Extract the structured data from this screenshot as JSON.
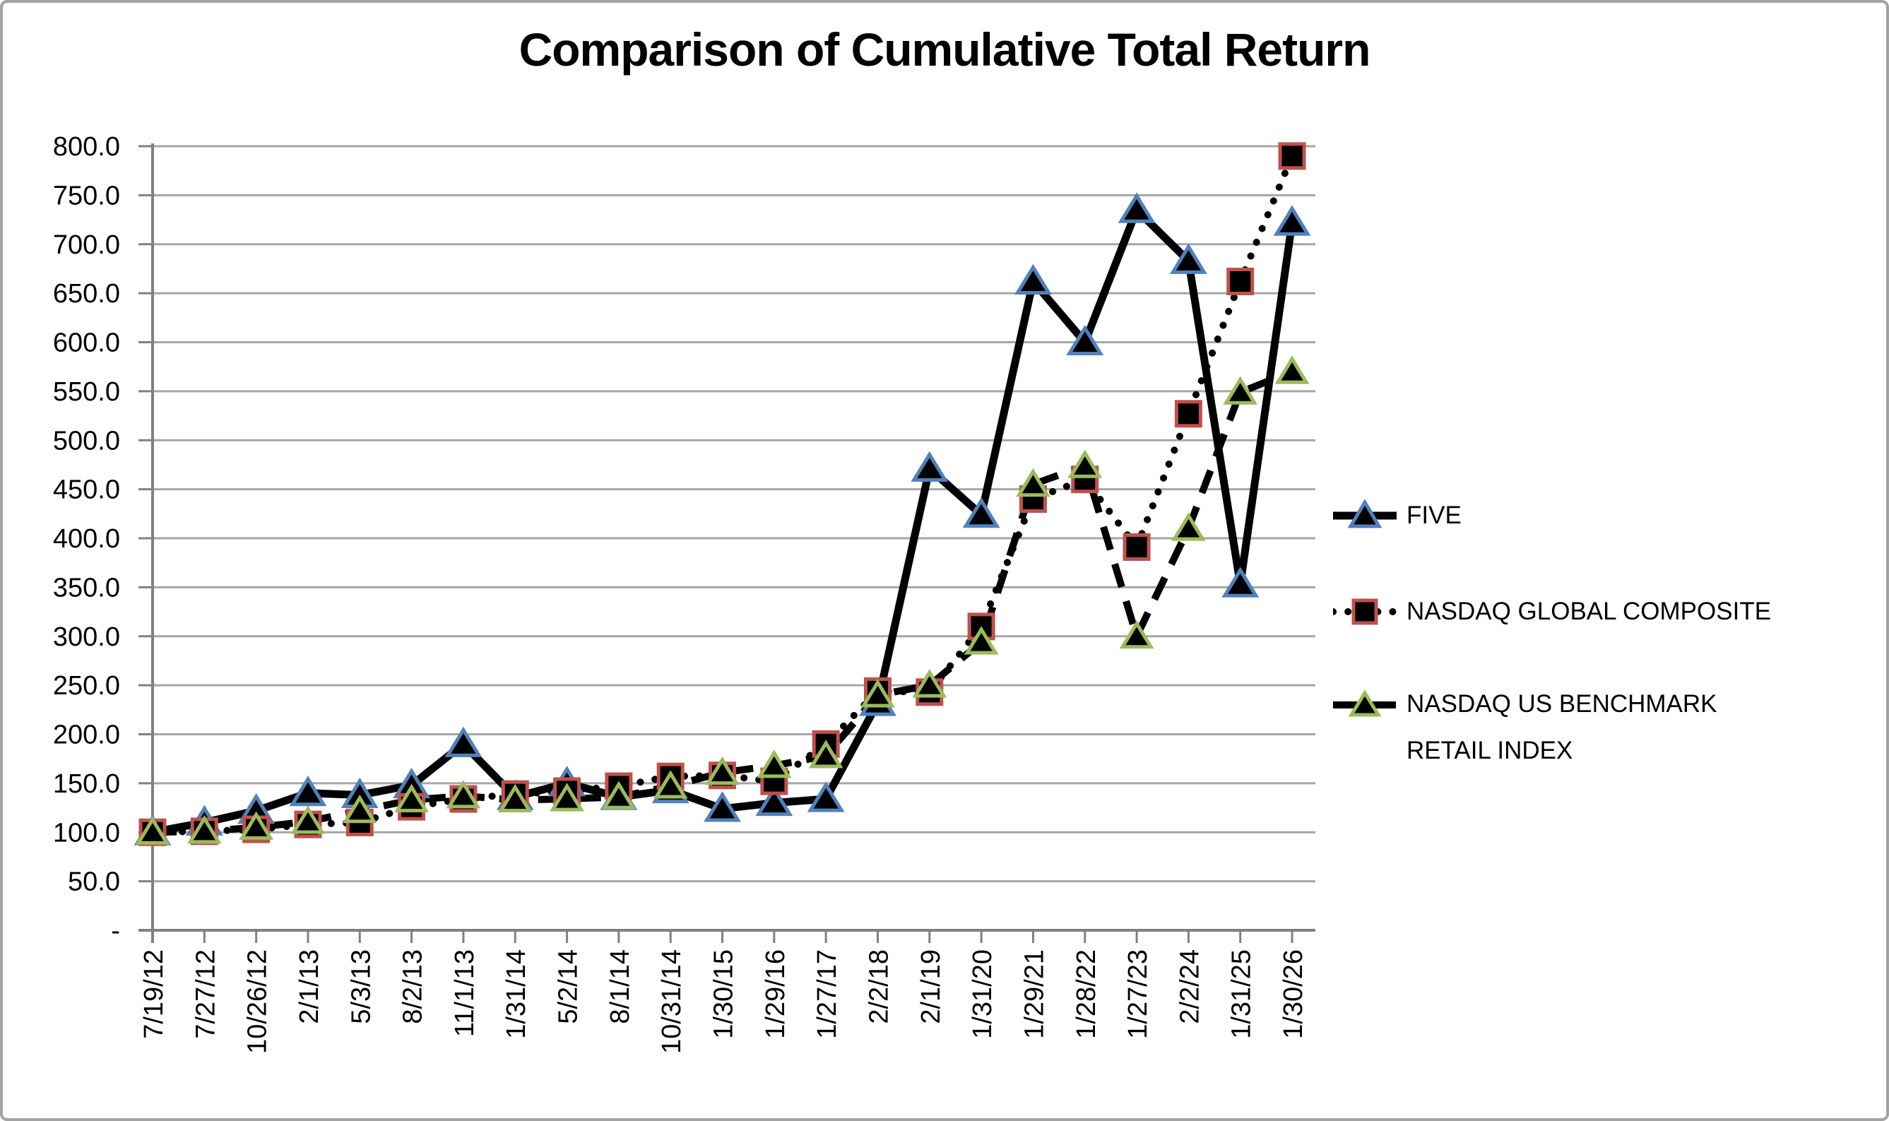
{
  "chart_data": {
    "type": "line",
    "title": "Comparison of Cumulative Total Return",
    "categories": [
      "7/19/12",
      "7/27/12",
      "10/26/12",
      "2/1/13",
      "5/3/13",
      "8/2/13",
      "11/1/13",
      "1/31/14",
      "5/2/14",
      "8/1/14",
      "10/31/14",
      "1/30/15",
      "1/29/16",
      "1/27/17",
      "2/2/18",
      "2/1/19",
      "1/31/20",
      "1/29/21",
      "1/28/22",
      "1/27/23",
      "2/2/24",
      "1/31/25",
      "1/30/26"
    ],
    "series": [
      {
        "name": "FIVE",
        "line_style": "solid",
        "marker": "triangle",
        "marker_fill": "#000000",
        "marker_border": "#4f81bd",
        "line_color": "#000000",
        "values": [
          100,
          110,
          122,
          140,
          138,
          148,
          190,
          136,
          150,
          136,
          143,
          124,
          130,
          134,
          232,
          471,
          424,
          662,
          600,
          735,
          683,
          353,
          722
        ]
      },
      {
        "name": "NASDAQ GLOBAL COMPOSITE",
        "line_style": "dotted",
        "marker": "square",
        "marker_fill": "#000000",
        "marker_border": "#c0504d",
        "line_color": "#000000",
        "values": [
          100,
          101,
          103,
          108,
          110,
          126,
          134,
          139,
          142,
          147,
          157,
          158,
          152,
          190,
          244,
          243,
          310,
          440,
          460,
          391,
          527,
          662,
          790
        ]
      },
      {
        "name": "NASDAQ US BENCHMARK RETAIL INDEX",
        "line_style": "dashed",
        "marker": "triangle",
        "marker_fill": "#000000",
        "marker_border": "#9bbb59",
        "line_color": "#000000",
        "values": [
          100,
          101,
          105,
          111,
          122,
          133,
          137,
          133,
          134,
          136,
          147,
          161,
          168,
          178,
          240,
          250,
          294,
          455,
          474,
          300,
          410,
          549,
          570
        ]
      }
    ],
    "ylim": [
      0,
      800
    ],
    "ytick_step": 50,
    "y_ticks": [
      "-",
      "50.0",
      "100.0",
      "150.0",
      "200.0",
      "250.0",
      "300.0",
      "350.0",
      "400.0",
      "450.0",
      "500.0",
      "550.0",
      "600.0",
      "650.0",
      "700.0",
      "750.0",
      "800.0"
    ],
    "xlabel": "",
    "ylabel": "",
    "grid": "horizontal",
    "legend_position": "right",
    "colors": {
      "grid": "#a6a6a6",
      "axis": "#808080",
      "text": "#000000",
      "background": "#ffffff",
      "frame_border": "#a3a3a3"
    }
  }
}
